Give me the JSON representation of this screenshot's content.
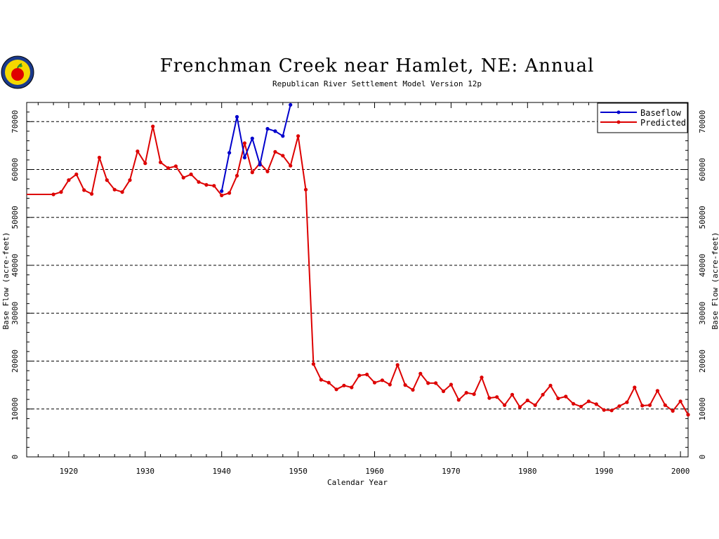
{
  "chart_data": {
    "type": "line",
    "title": "Frenchman Creek near Hamlet, NE: Annual",
    "subtitle": "Republican River Settlement Model Version 12p",
    "xlabel": "Calendar Year",
    "ylabel": "Base Flow (acre-feet)",
    "xlim": [
      1914.5,
      2001
    ],
    "ylim": [
      0,
      74000
    ],
    "xticks": [
      1920,
      1930,
      1940,
      1950,
      1960,
      1970,
      1980,
      1990,
      2000
    ],
    "yticks": [
      0,
      10000,
      20000,
      30000,
      40000,
      50000,
      60000,
      70000
    ],
    "grid": "horizontal dashed",
    "legend_position": "top-right",
    "colors": {
      "Baseflow": "#0000cc",
      "Predicted": "#dd0000"
    },
    "series": [
      {
        "name": "Baseflow",
        "x": [
          1940,
          1941,
          1942,
          1943,
          1944,
          1945,
          1946,
          1947,
          1948,
          1949
        ],
        "values": [
          55500,
          63500,
          71000,
          62500,
          66500,
          61000,
          68500,
          68000,
          67000,
          73500
        ]
      },
      {
        "name": "Predicted",
        "x": [
          1914.5,
          1918,
          1919,
          1920,
          1921,
          1922,
          1923,
          1924,
          1925,
          1926,
          1927,
          1928,
          1929,
          1930,
          1931,
          1932,
          1933,
          1934,
          1935,
          1936,
          1937,
          1938,
          1939,
          1940,
          1941,
          1942,
          1943,
          1944,
          1945,
          1946,
          1947,
          1948,
          1949,
          1950,
          1951,
          1952,
          1953,
          1954,
          1955,
          1956,
          1957,
          1958,
          1959,
          1960,
          1961,
          1962,
          1963,
          1964,
          1965,
          1966,
          1967,
          1968,
          1969,
          1970,
          1971,
          1972,
          1973,
          1974,
          1975,
          1976,
          1977,
          1978,
          1979,
          1980,
          1981,
          1982,
          1983,
          1984,
          1985,
          1986,
          1987,
          1988,
          1989,
          1990,
          1991,
          1992,
          1993,
          1994,
          1995,
          1996,
          1997,
          1998,
          1999,
          2000,
          2001
        ],
        "values": [
          54800,
          54800,
          55300,
          57800,
          59000,
          55700,
          54900,
          62500,
          57800,
          55800,
          55300,
          57800,
          63800,
          61300,
          69000,
          61500,
          60300,
          60700,
          58300,
          59000,
          57400,
          56800,
          56600,
          54600,
          55100,
          58700,
          65500,
          59400,
          61300,
          59600,
          63700,
          62900,
          60800,
          67000,
          55800,
          19400,
          16100,
          15500,
          14100,
          14900,
          14500,
          17000,
          17200,
          15500,
          16000,
          15100,
          19200,
          15000,
          14000,
          17400,
          15400,
          15400,
          13700,
          15100,
          11900,
          13400,
          13100,
          16600,
          12300,
          12500,
          10800,
          13000,
          10400,
          11800,
          10800,
          13000,
          14900,
          12200,
          12600,
          11100,
          10500,
          11600,
          11000,
          9800,
          9700,
          10600,
          11400,
          14500,
          10700,
          10800,
          13800,
          10800,
          9600,
          11600,
          8800
        ]
      }
    ]
  },
  "logo": {
    "name": "apple-logo"
  }
}
